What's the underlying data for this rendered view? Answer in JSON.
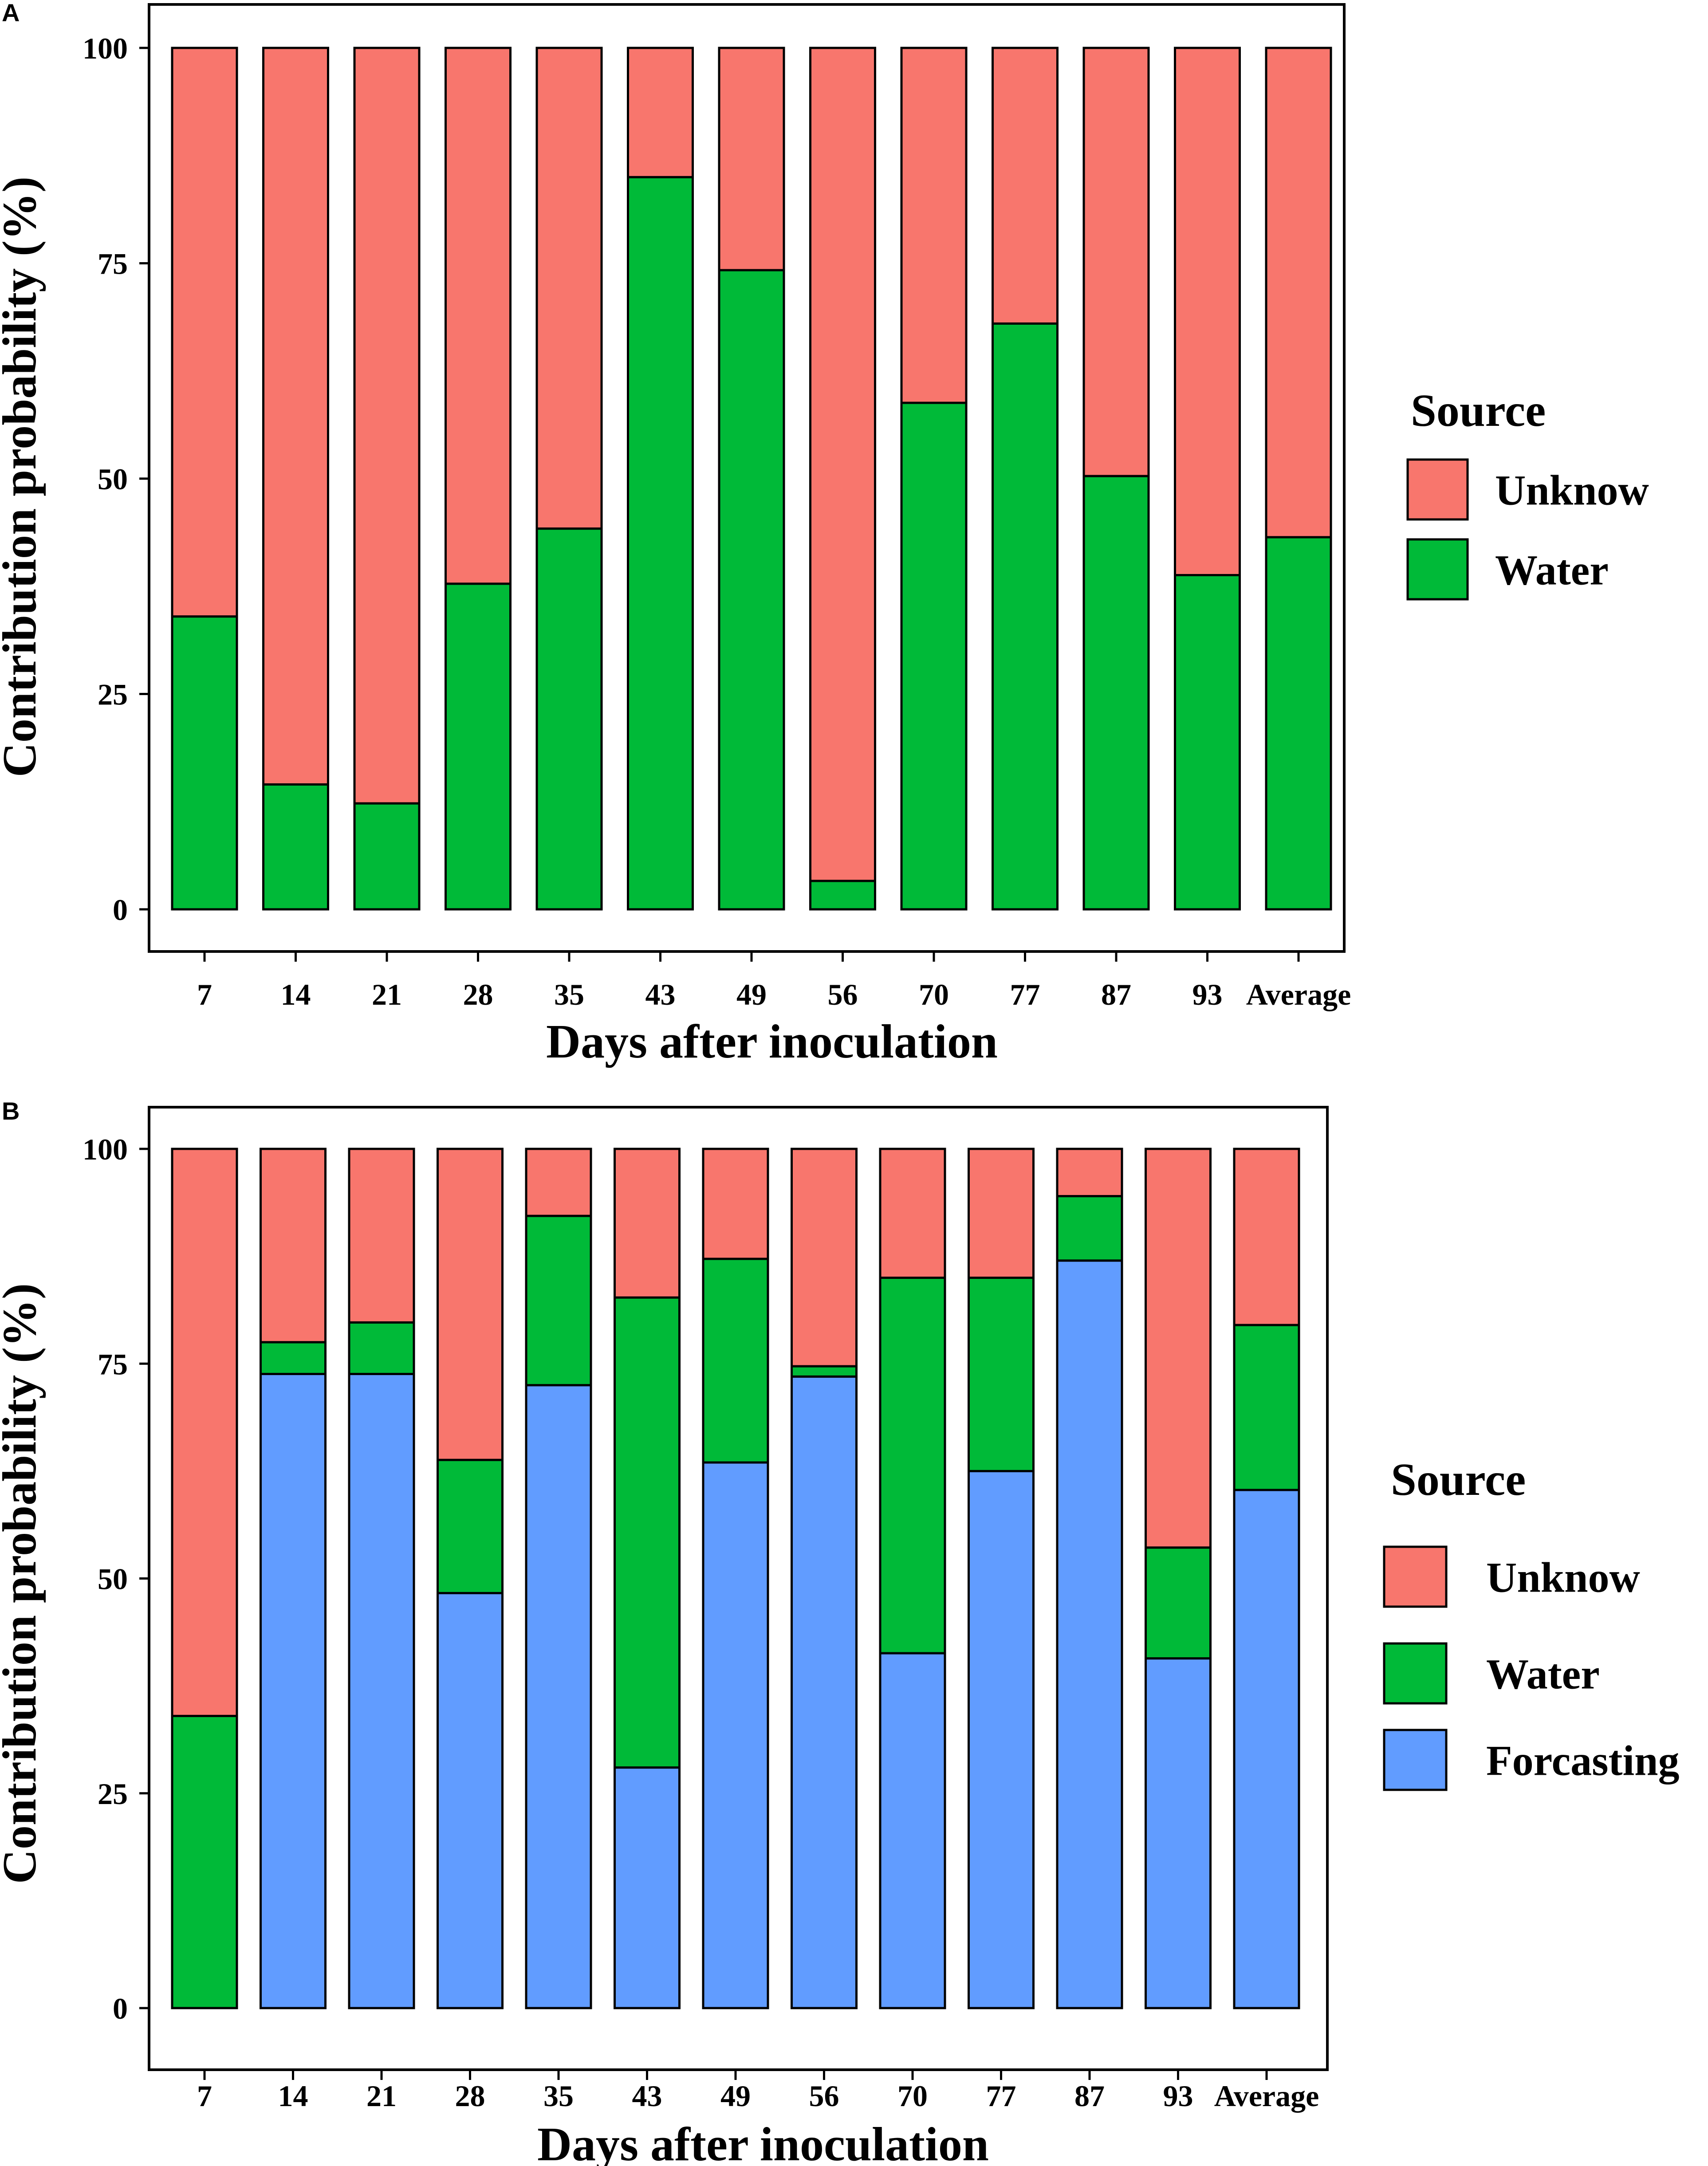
{
  "chart_data": [
    {
      "panel": "A",
      "type": "bar",
      "stacked": true,
      "xlabel": "Days after inoculation",
      "ylabel": "Contribution probability (%)",
      "ylim": [
        0,
        100
      ],
      "yticks": [
        "0",
        "25",
        "50",
        "75",
        "100"
      ],
      "categories": [
        "7",
        "14",
        "21",
        "28",
        "35",
        "43",
        "49",
        "56",
        "70",
        "77",
        "87",
        "93",
        "Average"
      ],
      "legend_title": "Source",
      "series": [
        {
          "name": "Water",
          "color": "#00BA38",
          "values": [
            34,
            14.5,
            12.3,
            37.8,
            44.2,
            85,
            74.2,
            3.3,
            58.8,
            68,
            50.3,
            38.8,
            43.2
          ]
        },
        {
          "name": "Unknow",
          "color": "#F8766D",
          "values": [
            66,
            85.5,
            87.7,
            62.2,
            55.8,
            15,
            25.8,
            96.7,
            41.2,
            32,
            49.7,
            61.2,
            56.8
          ]
        }
      ],
      "legend_order": [
        "Unknow",
        "Water"
      ]
    },
    {
      "panel": "B",
      "type": "bar",
      "stacked": true,
      "xlabel": "Days after inoculation",
      "ylabel": "Contribution probability (%)",
      "ylim": [
        0,
        100
      ],
      "yticks": [
        "0",
        "25",
        "50",
        "75",
        "100"
      ],
      "categories": [
        "7",
        "14",
        "21",
        "28",
        "35",
        "43",
        "49",
        "56",
        "70",
        "77",
        "87",
        "93",
        "Average"
      ],
      "legend_title": "Source",
      "series": [
        {
          "name": "Forcasting",
          "color": "#619CFF",
          "values": [
            0,
            73.8,
            73.8,
            48.3,
            72.5,
            28,
            63.5,
            73.5,
            41.3,
            62.5,
            87,
            40.7,
            60.3
          ]
        },
        {
          "name": "Water",
          "color": "#00BA38",
          "values": [
            34,
            3.7,
            6,
            15.5,
            19.7,
            54.7,
            23.7,
            1.2,
            43.7,
            22.5,
            7.5,
            12.9,
            19.2
          ]
        },
        {
          "name": "Unknow",
          "color": "#F8766D",
          "values": [
            66,
            22.5,
            20.2,
            36.2,
            7.8,
            17.3,
            12.8,
            25.3,
            15,
            15,
            5.5,
            46.4,
            20.5
          ]
        }
      ],
      "legend_order": [
        "Unknow",
        "Water",
        "Forcasting"
      ]
    }
  ]
}
